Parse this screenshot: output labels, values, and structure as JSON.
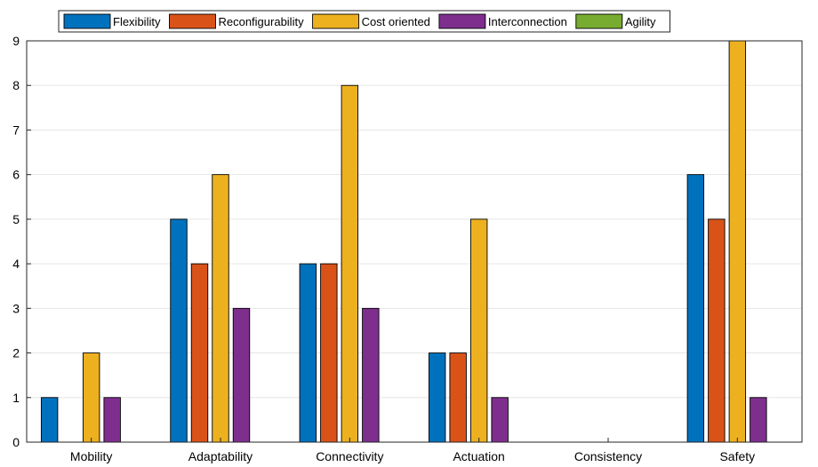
{
  "chart_data": {
    "type": "bar",
    "title": "",
    "xlabel": "",
    "ylabel": "",
    "categories": [
      "Mobility",
      "Adaptability",
      "Connectivity",
      "Actuation",
      "Consistency",
      "Safety"
    ],
    "series": [
      {
        "name": "Flexibility",
        "color": "#0072BD",
        "values": [
          1,
          5,
          4,
          2,
          0,
          6
        ]
      },
      {
        "name": "Reconfigurability",
        "color": "#D95319",
        "values": [
          0,
          4,
          4,
          2,
          0,
          5
        ]
      },
      {
        "name": "Cost oriented",
        "color": "#EDB120",
        "values": [
          2,
          6,
          8,
          5,
          0,
          9
        ]
      },
      {
        "name": "Interconnection",
        "color": "#7E2F8E",
        "values": [
          1,
          3,
          3,
          1,
          0,
          1
        ]
      },
      {
        "name": "Agility",
        "color": "#77AC30",
        "values": [
          0,
          0,
          0,
          0,
          0,
          0
        ]
      }
    ],
    "ylim": [
      0,
      9
    ],
    "yticks": [
      0,
      1,
      2,
      3,
      4,
      5,
      6,
      7,
      8,
      9
    ],
    "grid": "horizontal",
    "legend_position": "top"
  }
}
